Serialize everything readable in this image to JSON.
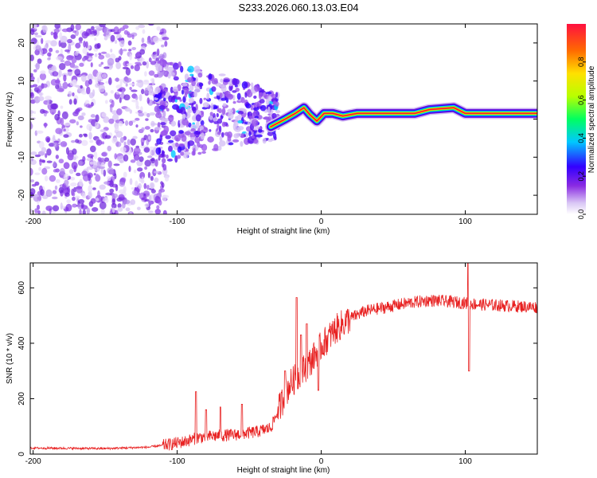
{
  "title": "S233.2026.060.13.03.E04",
  "chart_data": [
    {
      "type": "heatmap",
      "name": "spectrogram",
      "xlabel": "Height of straight line (km)",
      "ylabel": "Frequency (Hz)",
      "xlim": [
        -202,
        150
      ],
      "ylim": [
        -25,
        25
      ],
      "xticks": [
        -200,
        -100,
        0,
        100
      ],
      "yticks": [
        -20,
        -10,
        0,
        10,
        20
      ],
      "colorbar": {
        "label": "Normalized spectral amplitude",
        "range": [
          0,
          1
        ],
        "ticks": [
          0.0,
          0.2,
          0.4,
          0.6,
          0.8
        ],
        "tick_labels": [
          "0.0",
          "0.2",
          "0.4",
          "0.6",
          "0.8"
        ],
        "colors": [
          "#ffffff",
          "#d9c6f5",
          "#8a2be2",
          "#3300ff",
          "#00c8ff",
          "#00ff60",
          "#b8ff00",
          "#ffe000",
          "#ff6a00",
          "#ff1040"
        ]
      },
      "ridge": [
        [
          -35,
          -2
        ],
        [
          -25,
          0
        ],
        [
          -18,
          1.5
        ],
        [
          -12,
          3
        ],
        [
          -8,
          1.2
        ],
        [
          -3,
          -0.5
        ],
        [
          2,
          1.5
        ],
        [
          8,
          1.5
        ],
        [
          15,
          0.8
        ],
        [
          25,
          1.5
        ],
        [
          40,
          1.5
        ],
        [
          65,
          1.5
        ],
        [
          75,
          2.5
        ],
        [
          85,
          2.8
        ],
        [
          92,
          3
        ],
        [
          100,
          1.5
        ],
        [
          110,
          1.5
        ],
        [
          150,
          1.5
        ]
      ]
    },
    {
      "type": "line",
      "name": "snr",
      "xlabel": "Height of straight line (km)",
      "ylabel": "SNR (10 * v/v)",
      "xlim": [
        -202,
        150
      ],
      "ylim": [
        0,
        690
      ],
      "xticks": [
        -200,
        -100,
        0,
        100
      ],
      "yticks": [
        0,
        200,
        400,
        600
      ],
      "color": "#e82020",
      "baseline_points": [
        [
          -202,
          22
        ],
        [
          -150,
          20
        ],
        [
          -120,
          25
        ],
        [
          -105,
          35
        ],
        [
          -95,
          45
        ],
        [
          -85,
          60
        ],
        [
          -75,
          65
        ],
        [
          -60,
          70
        ],
        [
          -45,
          80
        ],
        [
          -35,
          95
        ],
        [
          -28,
          180
        ],
        [
          -22,
          250
        ],
        [
          -15,
          290
        ],
        [
          -8,
          330
        ],
        [
          0,
          390
        ],
        [
          10,
          450
        ],
        [
          20,
          490
        ],
        [
          30,
          515
        ],
        [
          45,
          530
        ],
        [
          60,
          545
        ],
        [
          75,
          555
        ],
        [
          90,
          550
        ],
        [
          100,
          545
        ],
        [
          110,
          540
        ],
        [
          130,
          535
        ],
        [
          150,
          530
        ]
      ],
      "spikes": [
        [
          -87,
          225
        ],
        [
          -80,
          160
        ],
        [
          -70,
          170
        ],
        [
          -55,
          180
        ],
        [
          -25,
          300
        ],
        [
          -17,
          565
        ],
        [
          -14,
          430
        ],
        [
          -10,
          470
        ],
        [
          -2,
          230
        ],
        [
          102,
          690
        ],
        [
          102.5,
          300
        ]
      ]
    }
  ]
}
